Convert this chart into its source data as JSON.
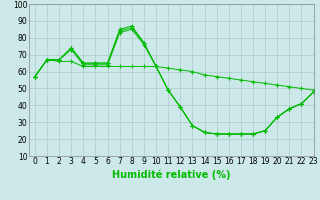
{
  "xlabel": "Humidité relative (%)",
  "background_color": "#cce8e8",
  "grid_color": "#aacccc",
  "line_color": "#00bb00",
  "xlim": [
    -0.5,
    23
  ],
  "ylim": [
    10,
    100
  ],
  "yticks": [
    10,
    20,
    30,
    40,
    50,
    60,
    70,
    80,
    90,
    100
  ],
  "xticks": [
    0,
    1,
    2,
    3,
    4,
    5,
    6,
    7,
    8,
    9,
    10,
    11,
    12,
    13,
    14,
    15,
    16,
    17,
    18,
    19,
    20,
    21,
    22,
    23
  ],
  "series": [
    {
      "x": [
        0,
        1,
        2,
        3,
        4,
        5,
        6,
        7,
        8,
        9,
        10,
        11,
        12,
        13,
        14,
        15,
        16,
        17,
        18,
        19,
        20,
        21,
        22,
        23
      ],
      "y": [
        57,
        67,
        67,
        74,
        65,
        65,
        65,
        85,
        87,
        77,
        63,
        49,
        39,
        28,
        24,
        23,
        23,
        23,
        23,
        25,
        33,
        38,
        41,
        48
      ]
    },
    {
      "x": [
        0,
        1,
        2,
        3,
        4,
        5,
        6,
        7,
        8,
        9,
        10,
        11,
        12,
        13,
        14,
        15,
        16,
        17,
        18,
        19,
        20,
        21,
        22,
        23
      ],
      "y": [
        57,
        67,
        67,
        74,
        65,
        65,
        65,
        84,
        86,
        77,
        63,
        49,
        39,
        28,
        24,
        23,
        23,
        23,
        23,
        25,
        33,
        38,
        41,
        48
      ]
    },
    {
      "x": [
        0,
        1,
        2,
        3,
        4,
        5,
        6,
        7,
        8,
        9,
        10,
        11,
        12,
        13,
        14,
        15,
        16,
        17,
        18,
        19,
        20,
        21,
        22,
        23
      ],
      "y": [
        57,
        67,
        67,
        73,
        64,
        64,
        64,
        83,
        85,
        76,
        63,
        49,
        39,
        28,
        24,
        23,
        23,
        23,
        23,
        25,
        33,
        38,
        41,
        48
      ]
    },
    {
      "x": [
        0,
        1,
        2,
        3,
        4,
        5,
        6,
        7,
        8,
        9,
        10,
        11,
        12,
        13,
        14,
        15,
        16,
        17,
        18,
        19,
        20,
        21,
        22,
        23
      ],
      "y": [
        57,
        67,
        66,
        66,
        63,
        63,
        63,
        63,
        63,
        63,
        63,
        62,
        61,
        60,
        58,
        57,
        56,
        55,
        54,
        53,
        52,
        51,
        50,
        49
      ]
    }
  ],
  "tick_fontsize": 5.5,
  "xlabel_fontsize": 7
}
